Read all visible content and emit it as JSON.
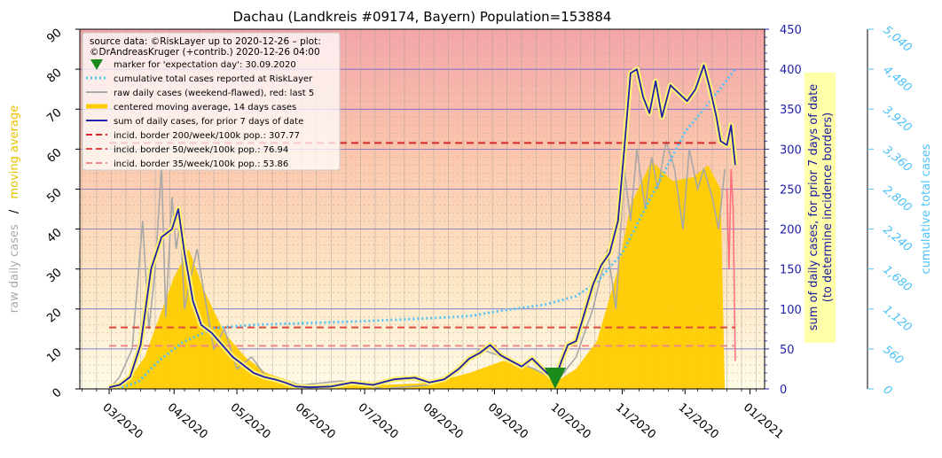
{
  "chart_data": {
    "type": "line",
    "title": "Dachau (Landkreis #09174, Bayern) Population=153884",
    "ylabel_left_parts": [
      "raw daily cases",
      "/",
      "moving average"
    ],
    "ylabel_right_lines": [
      "sum of daily cases, for prior 7 days of date",
      "(to determine incidence borders)"
    ],
    "ylabel_far_right": "cumulative total cases",
    "ylim_left": [
      0,
      90
    ],
    "ylim_right": [
      0,
      450
    ],
    "ylim_far_right": [
      0,
      5040
    ],
    "left_ticks": [
      "0",
      "10",
      "20",
      "30",
      "40",
      "50",
      "60",
      "70",
      "80",
      "90"
    ],
    "right_ticks": [
      "0",
      "50",
      "100",
      "150",
      "200",
      "250",
      "300",
      "350",
      "400",
      "450"
    ],
    "far_right_ticks": [
      "0",
      "560",
      "1,120",
      "1,680",
      "2,240",
      "2,800",
      "3,360",
      "3,920",
      "4,480",
      "5,040"
    ],
    "x_ticks": [
      "03/2020",
      "04/2020",
      "05/2020",
      "06/2020",
      "07/2020",
      "08/2020",
      "09/2020",
      "10/2020",
      "11/2020",
      "12/2020",
      "01/2021"
    ],
    "legend": {
      "placement": "top-left",
      "header": [
        "source data: ©RiskLayer up to 2020-12-26 – plot:",
        "©DrAndreasKruger (+contrib.) 2020-12-26 04:00"
      ],
      "entries": [
        "marker for 'expectation day': 30.09.2020",
        "cumulative total cases reported at RiskLayer",
        "raw daily cases (weekend-flawed), red: last 5",
        "centered moving average, 14 days cases",
        "sum of daily cases, for prior 7 days of date",
        "incid. border 200/week/100k pop.: 307.77",
        "incid. border 50/week/100k pop.: 76.94",
        "incid. border 35/week/100k pop.: 53.86"
      ]
    },
    "incidence_borders_7day_sum": [
      307.77,
      76.94,
      53.86
    ],
    "expectation_day": "2020-09-30",
    "weekly_sum_series": {
      "name": "sum of daily cases, for prior 7 days of date",
      "dates": [
        "2020-03-01",
        "2020-03-06",
        "2020-03-11",
        "2020-03-16",
        "2020-03-21",
        "2020-03-26",
        "2020-03-31",
        "2020-04-03",
        "2020-04-06",
        "2020-04-10",
        "2020-04-14",
        "2020-04-19",
        "2020-04-24",
        "2020-04-29",
        "2020-05-04",
        "2020-05-09",
        "2020-05-14",
        "2020-05-19",
        "2020-05-24",
        "2020-05-29",
        "2020-06-05",
        "2020-06-15",
        "2020-06-25",
        "2020-07-05",
        "2020-07-15",
        "2020-07-25",
        "2020-08-01",
        "2020-08-08",
        "2020-08-15",
        "2020-08-20",
        "2020-08-25",
        "2020-08-30",
        "2020-09-04",
        "2020-09-09",
        "2020-09-14",
        "2020-09-19",
        "2020-09-24",
        "2020-09-28",
        "2020-09-30",
        "2020-10-03",
        "2020-10-06",
        "2020-10-10",
        "2020-10-14",
        "2020-10-18",
        "2020-10-22",
        "2020-10-26",
        "2020-10-30",
        "2020-11-02",
        "2020-11-05",
        "2020-11-08",
        "2020-11-11",
        "2020-11-14",
        "2020-11-17",
        "2020-11-20",
        "2020-11-24",
        "2020-11-28",
        "2020-12-02",
        "2020-12-06",
        "2020-12-10",
        "2020-12-13",
        "2020-12-16",
        "2020-12-18",
        "2020-12-21",
        "2020-12-23",
        "2020-12-25"
      ],
      "values": [
        2,
        5,
        15,
        55,
        150,
        190,
        200,
        225,
        170,
        110,
        80,
        70,
        55,
        40,
        30,
        20,
        15,
        12,
        8,
        3,
        2,
        3,
        8,
        5,
        12,
        14,
        8,
        12,
        25,
        38,
        45,
        55,
        42,
        35,
        28,
        38,
        25,
        15,
        12,
        35,
        55,
        60,
        95,
        130,
        155,
        170,
        210,
        300,
        395,
        400,
        365,
        345,
        385,
        340,
        380,
        370,
        360,
        375,
        405,
        375,
        340,
        310,
        305,
        330,
        280
      ]
    },
    "moving_average_series": {
      "name": "centered moving average, 14 days cases",
      "dates": [
        "2020-03-01",
        "2020-03-10",
        "2020-03-18",
        "2020-03-25",
        "2020-04-01",
        "2020-04-08",
        "2020-04-15",
        "2020-04-25",
        "2020-05-05",
        "2020-05-15",
        "2020-06-01",
        "2020-06-20",
        "2020-07-10",
        "2020-08-01",
        "2020-08-20",
        "2020-09-05",
        "2020-09-20",
        "2020-10-01",
        "2020-10-10",
        "2020-10-20",
        "2020-10-30",
        "2020-11-05",
        "2020-11-15",
        "2020-11-25",
        "2020-12-05",
        "2020-12-12",
        "2020-12-18",
        "2020-12-20"
      ],
      "values": [
        0.2,
        2,
        8,
        18,
        28,
        35,
        25,
        14,
        8,
        4,
        1,
        0.8,
        1,
        1.5,
        4,
        7,
        5,
        2,
        5,
        12,
        30,
        46,
        57,
        52,
        53,
        56,
        50,
        0
      ]
    },
    "raw_daily_series": {
      "name": "raw daily cases (weekend-flawed), red: last 5",
      "dates": [
        "2020-03-01",
        "2020-03-06",
        "2020-03-12",
        "2020-03-17",
        "2020-03-20",
        "2020-03-23",
        "2020-03-26",
        "2020-03-28",
        "2020-03-31",
        "2020-04-02",
        "2020-04-04",
        "2020-04-06",
        "2020-04-09",
        "2020-04-12",
        "2020-04-15",
        "2020-04-20",
        "2020-04-25",
        "2020-05-01",
        "2020-05-08",
        "2020-05-15",
        "2020-06-01",
        "2020-06-20",
        "2020-07-10",
        "2020-08-01",
        "2020-08-15",
        "2020-08-25",
        "2020-09-05",
        "2020-09-20",
        "2020-10-01",
        "2020-10-10",
        "2020-10-18",
        "2020-10-25",
        "2020-10-29",
        "2020-11-02",
        "2020-11-05",
        "2020-11-08",
        "2020-11-12",
        "2020-11-15",
        "2020-11-18",
        "2020-11-22",
        "2020-11-26",
        "2020-11-30",
        "2020-12-03",
        "2020-12-07",
        "2020-12-10",
        "2020-12-14",
        "2020-12-17",
        "2020-12-20"
      ],
      "values": [
        0,
        3,
        10,
        42,
        15,
        30,
        56,
        18,
        48,
        35,
        42,
        20,
        28,
        35,
        25,
        10,
        15,
        5,
        8,
        3,
        1,
        2,
        0,
        1,
        5,
        10,
        8,
        5,
        2,
        8,
        20,
        35,
        20,
        55,
        42,
        60,
        45,
        58,
        50,
        62,
        55,
        40,
        60,
        50,
        55,
        48,
        40,
        55
      ]
    },
    "raw_daily_last5": {
      "name": "red: last 5",
      "dates": [
        "2020-12-21",
        "2020-12-22",
        "2020-12-23",
        "2020-12-24",
        "2020-12-25"
      ],
      "values": [
        50,
        30,
        55,
        45,
        7
      ]
    },
    "cumulative_series": {
      "name": "cumulative total cases reported at RiskLayer",
      "dates": [
        "2020-03-05",
        "2020-03-15",
        "2020-03-25",
        "2020-04-05",
        "2020-04-20",
        "2020-05-10",
        "2020-06-01",
        "2020-07-01",
        "2020-08-01",
        "2020-08-20",
        "2020-09-05",
        "2020-09-25",
        "2020-10-10",
        "2020-10-20",
        "2020-11-01",
        "2020-11-15",
        "2020-12-01",
        "2020-12-15",
        "2020-12-25"
      ],
      "values": [
        0,
        100,
        400,
        650,
        850,
        900,
        920,
        950,
        990,
        1020,
        1100,
        1180,
        1300,
        1500,
        1900,
        2700,
        3600,
        4100,
        4480
      ]
    }
  }
}
